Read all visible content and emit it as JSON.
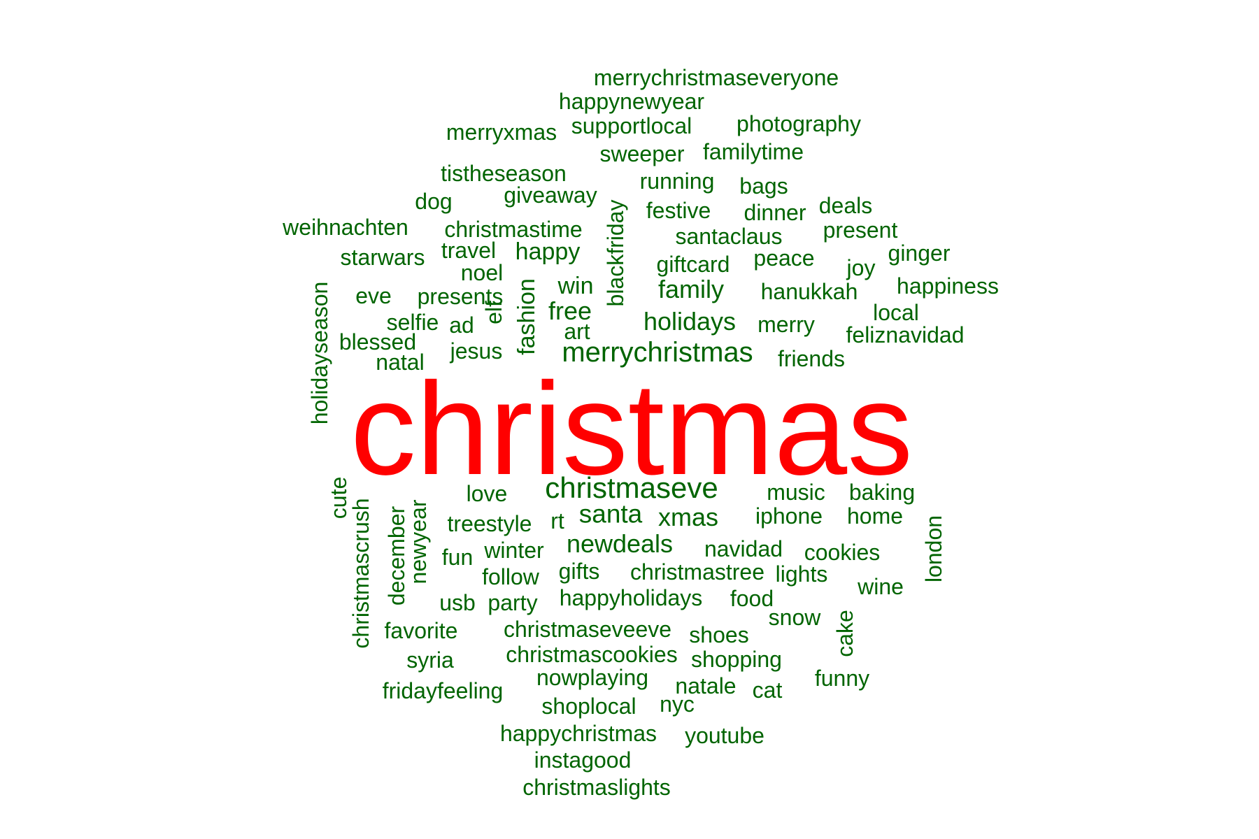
{
  "colors": {
    "top": "#ff0000",
    "word": "#006400",
    "background": "#ffffff"
  },
  "words": [
    {
      "text": "christmas",
      "weight": 1.0,
      "color": "top"
    },
    {
      "text": "merrychristmas",
      "weight": 0.2
    },
    {
      "text": "christmaseve",
      "weight": 0.2
    },
    {
      "text": "holidays",
      "weight": 0.16
    },
    {
      "text": "newdeals",
      "weight": 0.16
    },
    {
      "text": "santa",
      "weight": 0.16
    },
    {
      "text": "blackfriday",
      "weight": 0.16
    },
    {
      "text": "xmas",
      "weight": 0.15
    },
    {
      "text": "family",
      "weight": 0.15
    },
    {
      "text": "free",
      "weight": 0.15
    },
    {
      "text": "win",
      "weight": 0.14
    },
    {
      "text": "happy",
      "weight": 0.14
    },
    {
      "text": "fashion",
      "weight": 0.14
    },
    {
      "text": "merrychristmaseveryone",
      "weight": 0.12
    },
    {
      "text": "happynewyear",
      "weight": 0.12
    },
    {
      "text": "supportlocal",
      "weight": 0.12
    },
    {
      "text": "photography",
      "weight": 0.12
    },
    {
      "text": "merryxmas",
      "weight": 0.12
    },
    {
      "text": "sweeper",
      "weight": 0.12
    },
    {
      "text": "familytime",
      "weight": 0.12
    },
    {
      "text": "tistheseason",
      "weight": 0.12
    },
    {
      "text": "running",
      "weight": 0.12
    },
    {
      "text": "bags",
      "weight": 0.12
    },
    {
      "text": "dog",
      "weight": 0.12
    },
    {
      "text": "giveaway",
      "weight": 0.12
    },
    {
      "text": "festive",
      "weight": 0.12
    },
    {
      "text": "dinner",
      "weight": 0.12
    },
    {
      "text": "deals",
      "weight": 0.12
    },
    {
      "text": "weihnachten",
      "weight": 0.12
    },
    {
      "text": "christmastime",
      "weight": 0.12
    },
    {
      "text": "santaclaus",
      "weight": 0.12
    },
    {
      "text": "present",
      "weight": 0.12
    },
    {
      "text": "starwars",
      "weight": 0.12
    },
    {
      "text": "travel",
      "weight": 0.12
    },
    {
      "text": "giftcard",
      "weight": 0.12
    },
    {
      "text": "peace",
      "weight": 0.12
    },
    {
      "text": "joy",
      "weight": 0.12
    },
    {
      "text": "ginger",
      "weight": 0.12
    },
    {
      "text": "noel",
      "weight": 0.12
    },
    {
      "text": "hanukkah",
      "weight": 0.12
    },
    {
      "text": "happiness",
      "weight": 0.12
    },
    {
      "text": "holidayseason",
      "weight": 0.12
    },
    {
      "text": "eve",
      "weight": 0.12
    },
    {
      "text": "presents",
      "weight": 0.12
    },
    {
      "text": "local",
      "weight": 0.12
    },
    {
      "text": "selfie",
      "weight": 0.12
    },
    {
      "text": "ad",
      "weight": 0.12
    },
    {
      "text": "elf",
      "weight": 0.12
    },
    {
      "text": "art",
      "weight": 0.12
    },
    {
      "text": "merry",
      "weight": 0.12
    },
    {
      "text": "feliznavidad",
      "weight": 0.12
    },
    {
      "text": "blessed",
      "weight": 0.12
    },
    {
      "text": "jesus",
      "weight": 0.12
    },
    {
      "text": "friends",
      "weight": 0.12
    },
    {
      "text": "natal",
      "weight": 0.12
    },
    {
      "text": "cute",
      "weight": 0.12
    },
    {
      "text": "christmascrush",
      "weight": 0.12
    },
    {
      "text": "love",
      "weight": 0.12
    },
    {
      "text": "music",
      "weight": 0.12
    },
    {
      "text": "baking",
      "weight": 0.12
    },
    {
      "text": "december",
      "weight": 0.12
    },
    {
      "text": "newyear",
      "weight": 0.12
    },
    {
      "text": "treestyle",
      "weight": 0.12
    },
    {
      "text": "rt",
      "weight": 0.12
    },
    {
      "text": "iphone",
      "weight": 0.12
    },
    {
      "text": "home",
      "weight": 0.12
    },
    {
      "text": "london",
      "weight": 0.12
    },
    {
      "text": "fun",
      "weight": 0.12
    },
    {
      "text": "winter",
      "weight": 0.12
    },
    {
      "text": "navidad",
      "weight": 0.12
    },
    {
      "text": "cookies",
      "weight": 0.12
    },
    {
      "text": "follow",
      "weight": 0.12
    },
    {
      "text": "gifts",
      "weight": 0.12
    },
    {
      "text": "christmastree",
      "weight": 0.12
    },
    {
      "text": "lights",
      "weight": 0.12
    },
    {
      "text": "wine",
      "weight": 0.12
    },
    {
      "text": "usb",
      "weight": 0.12
    },
    {
      "text": "party",
      "weight": 0.12
    },
    {
      "text": "happyholidays",
      "weight": 0.12
    },
    {
      "text": "food",
      "weight": 0.12
    },
    {
      "text": "snow",
      "weight": 0.12
    },
    {
      "text": "cake",
      "weight": 0.12
    },
    {
      "text": "favorite",
      "weight": 0.12
    },
    {
      "text": "christmaseveeve",
      "weight": 0.12
    },
    {
      "text": "shoes",
      "weight": 0.12
    },
    {
      "text": "syria",
      "weight": 0.12
    },
    {
      "text": "christmascookies",
      "weight": 0.12
    },
    {
      "text": "shopping",
      "weight": 0.12
    },
    {
      "text": "funny",
      "weight": 0.12
    },
    {
      "text": "nowplaying",
      "weight": 0.12
    },
    {
      "text": "fridayfeeling",
      "weight": 0.12
    },
    {
      "text": "natale",
      "weight": 0.12
    },
    {
      "text": "cat",
      "weight": 0.12
    },
    {
      "text": "shoplocal",
      "weight": 0.12
    },
    {
      "text": "nyc",
      "weight": 0.12
    },
    {
      "text": "happychristmas",
      "weight": 0.12
    },
    {
      "text": "youtube",
      "weight": 0.12
    },
    {
      "text": "instagood",
      "weight": 0.12
    },
    {
      "text": "christmaslights",
      "weight": 0.12
    }
  ]
}
